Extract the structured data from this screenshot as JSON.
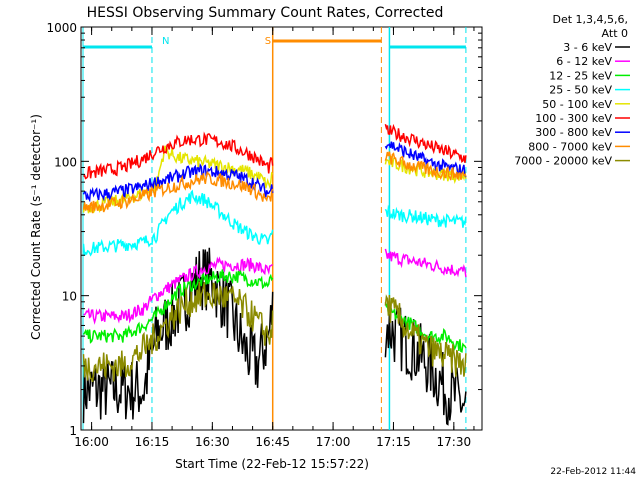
{
  "chart_data": {
    "type": "line",
    "title": "HESSI Observing Summary Count Rates, Corrected",
    "xlabel": "Start Time (22-Feb-12 15:57:22)",
    "ylabel": "Corrected Count Rate (s⁻¹ detector⁻¹)",
    "yscale": "log",
    "xlim": [
      "15:57:22",
      "17:37:00"
    ],
    "ylim": [
      1,
      1000
    ],
    "x_ticks": [
      "16:00",
      "16:15",
      "16:30",
      "16:45",
      "17:00",
      "17:15",
      "17:30"
    ],
    "y_ticks": [
      "1",
      "10",
      "100",
      "1000"
    ],
    "legend_title": [
      "Det 1,3,4,5,6,",
      "Att 0"
    ],
    "legend_position": "right",
    "timestamp": "22-Feb-2012 11:44",
    "annotations": [
      {
        "label": "N",
        "color": "#00e5ee",
        "x": "16:16"
      },
      {
        "label": "S",
        "color": "#ff8c00",
        "x": "16:45"
      }
    ],
    "night_segments": [
      [
        "15:57:22",
        "16:15:00"
      ],
      [
        "17:14:00",
        "17:33:00"
      ]
    ],
    "saa_segment": [
      "16:45:00",
      "17:12:00"
    ],
    "gap": [
      "16:45:30",
      "17:13:30"
    ],
    "series": [
      {
        "name": "3 - 6 keV",
        "color": "#000000",
        "before": {
          "x": [
            "15:58",
            "16:03",
            "16:08",
            "16:13",
            "16:16",
            "16:20",
            "16:24",
            "16:27",
            "16:30",
            "16:34",
            "16:38",
            "16:41",
            "16:44",
            "16:45"
          ],
          "y": [
            2,
            2,
            2,
            2,
            5,
            7,
            10,
            14,
            13,
            8,
            4,
            3,
            5,
            8
          ]
        },
        "after": {
          "x": [
            "17:13",
            "17:16",
            "17:20",
            "17:24",
            "17:28",
            "17:33"
          ],
          "y": [
            6,
            5,
            4,
            3,
            2,
            1.5
          ]
        }
      },
      {
        "name": "6 - 12 keV",
        "color": "#ff00ff",
        "before": {
          "x": [
            "15:58",
            "16:03",
            "16:08",
            "16:13",
            "16:16",
            "16:20",
            "16:24",
            "16:28",
            "16:32",
            "16:36",
            "16:40",
            "16:44",
            "16:45"
          ],
          "y": [
            7,
            7,
            7,
            8,
            10,
            12,
            14,
            16,
            17,
            17,
            17,
            15,
            16
          ]
        },
        "after": {
          "x": [
            "17:13",
            "17:16",
            "17:20",
            "17:24",
            "17:28",
            "17:33"
          ],
          "y": [
            20,
            19,
            18,
            17,
            16,
            15
          ]
        }
      },
      {
        "name": "12 - 25 keV",
        "color": "#00ee00",
        "before": {
          "x": [
            "15:58",
            "16:03",
            "16:08",
            "16:13",
            "16:16",
            "16:19",
            "16:22",
            "16:25",
            "16:28",
            "16:32",
            "16:36",
            "16:40",
            "16:44",
            "16:45"
          ],
          "y": [
            5,
            5,
            5,
            6,
            7,
            9,
            11,
            12,
            13,
            14,
            14,
            13,
            12,
            14
          ]
        },
        "after": {
          "x": [
            "17:13",
            "17:16",
            "17:20",
            "17:24",
            "17:28",
            "17:33"
          ],
          "y": [
            8,
            7,
            6,
            5,
            5,
            4
          ]
        }
      },
      {
        "name": "25 - 50 keV",
        "color": "#00ffff",
        "before": {
          "x": [
            "15:58",
            "16:03",
            "16:08",
            "16:13",
            "16:16",
            "16:19",
            "16:22",
            "16:25",
            "16:28",
            "16:32",
            "16:36",
            "16:40",
            "16:44",
            "16:45"
          ],
          "y": [
            22,
            23,
            24,
            25,
            28,
            40,
            48,
            55,
            52,
            42,
            33,
            28,
            25,
            30
          ]
        },
        "after": {
          "x": [
            "17:13",
            "17:16",
            "17:20",
            "17:24",
            "17:28",
            "17:33"
          ],
          "y": [
            42,
            40,
            39,
            37,
            36,
            35
          ]
        }
      },
      {
        "name": "50 - 100 keV",
        "color": "#e5e500",
        "before": {
          "x": [
            "15:58",
            "16:03",
            "16:08",
            "16:13",
            "16:16",
            "16:18",
            "16:22",
            "16:26",
            "16:30",
            "16:34",
            "16:38",
            "16:42",
            "16:44",
            "16:45"
          ],
          "y": [
            45,
            48,
            52,
            58,
            65,
            120,
            105,
            100,
            95,
            90,
            85,
            75,
            65,
            80
          ]
        },
        "after": {
          "x": [
            "17:13",
            "17:16",
            "17:20",
            "17:24",
            "17:28",
            "17:33"
          ],
          "y": [
            100,
            95,
            88,
            82,
            80,
            78
          ]
        }
      },
      {
        "name": "100 - 300 keV",
        "color": "#ff0000",
        "before": {
          "x": [
            "15:58",
            "16:03",
            "16:08",
            "16:13",
            "16:16",
            "16:20",
            "16:24",
            "16:28",
            "16:32",
            "16:36",
            "16:40",
            "16:44",
            "16:45"
          ],
          "y": [
            80,
            85,
            90,
            105,
            120,
            135,
            145,
            145,
            140,
            125,
            110,
            90,
            100
          ]
        },
        "after": {
          "x": [
            "17:13",
            "17:16",
            "17:20",
            "17:24",
            "17:28",
            "17:33"
          ],
          "y": [
            170,
            160,
            145,
            130,
            118,
            105
          ]
        }
      },
      {
        "name": "300 - 800 keV",
        "color": "#0000ff",
        "before": {
          "x": [
            "15:58",
            "16:03",
            "16:08",
            "16:13",
            "16:16",
            "16:20",
            "16:24",
            "16:28",
            "16:32",
            "16:36",
            "16:40",
            "16:44",
            "16:45"
          ],
          "y": [
            55,
            57,
            60,
            65,
            70,
            75,
            82,
            85,
            82,
            78,
            70,
            58,
            65
          ]
        },
        "after": {
          "x": [
            "17:13",
            "17:16",
            "17:20",
            "17:24",
            "17:28",
            "17:33"
          ],
          "y": [
            140,
            125,
            110,
            98,
            90,
            85
          ]
        }
      },
      {
        "name": "800 - 7000 keV",
        "color": "#ff8c00",
        "before": {
          "x": [
            "15:58",
            "16:03",
            "16:08",
            "16:13",
            "16:16",
            "16:20",
            "16:24",
            "16:28",
            "16:32",
            "16:36",
            "16:40",
            "16:44",
            "16:45"
          ],
          "y": [
            45,
            47,
            50,
            55,
            60,
            65,
            70,
            75,
            72,
            68,
            62,
            50,
            58
          ]
        },
        "after": {
          "x": [
            "17:13",
            "17:16",
            "17:20",
            "17:24",
            "17:28",
            "17:33"
          ],
          "y": [
            110,
            100,
            92,
            86,
            82,
            78
          ]
        }
      },
      {
        "name": "7000 - 20000 keV",
        "color": "#8b8b00",
        "before": {
          "x": [
            "15:58",
            "16:03",
            "16:08",
            "16:13",
            "16:16",
            "16:20",
            "16:24",
            "16:28",
            "16:32",
            "16:36",
            "16:40",
            "16:44",
            "16:45"
          ],
          "y": [
            3,
            3,
            3,
            4,
            5,
            7,
            9,
            10,
            10,
            9,
            7,
            5,
            6
          ]
        },
        "after": {
          "x": [
            "17:13",
            "17:16",
            "17:20",
            "17:24",
            "17:28",
            "17:33"
          ],
          "y": [
            9,
            7,
            5,
            4,
            3.5,
            3
          ]
        }
      }
    ]
  }
}
